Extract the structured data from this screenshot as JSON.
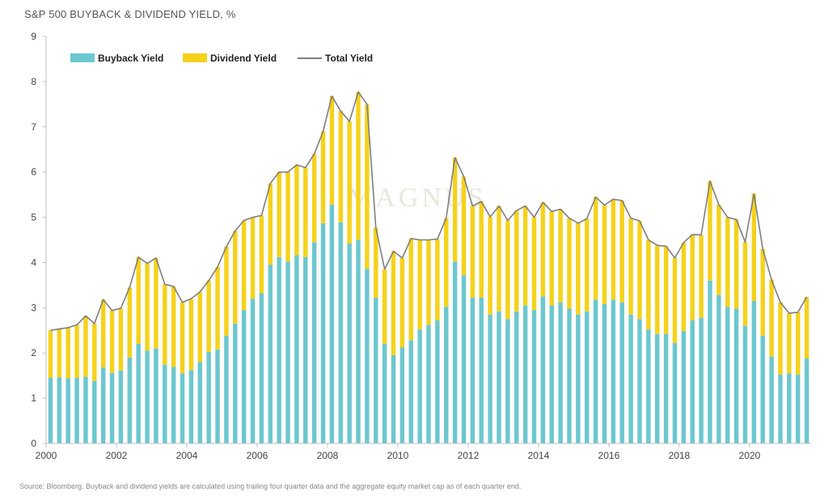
{
  "chart_data": {
    "type": "bar",
    "stacked": true,
    "title": "S&P 500 BUYBACK & DIVIDEND YIELD, %",
    "ylim": [
      0,
      9
    ],
    "yticks": [
      0,
      1,
      2,
      3,
      4,
      5,
      6,
      7,
      8,
      9
    ],
    "xticks": [
      "2000",
      "2002",
      "2004",
      "2006",
      "2008",
      "2010",
      "2012",
      "2014",
      "2016",
      "2018",
      "2020"
    ],
    "x_start": 2000,
    "x_step": 0.25,
    "legend": {
      "placement": "top-left",
      "entries": [
        "Buyback Yield",
        "Dividend Yield",
        "Total Yield"
      ]
    },
    "series": [
      {
        "name": "Buyback Yield",
        "color": "#6cc7cf",
        "values": [
          1.45,
          1.46,
          1.44,
          1.45,
          1.47,
          1.38,
          1.68,
          1.56,
          1.61,
          1.9,
          2.2,
          2.05,
          2.1,
          1.74,
          1.69,
          1.55,
          1.62,
          1.8,
          2.02,
          2.08,
          2.38,
          2.65,
          2.95,
          3.2,
          3.32,
          3.95,
          4.12,
          4.02,
          4.16,
          4.12,
          4.45,
          4.87,
          5.28,
          4.89,
          4.42,
          4.5,
          3.86,
          3.22,
          2.2,
          1.95,
          2.12,
          2.28,
          2.52,
          2.62,
          2.72,
          3.02,
          4.02,
          3.72,
          3.22,
          3.22,
          2.85,
          2.92,
          2.75,
          2.92,
          3.05,
          2.95,
          3.25,
          3.05,
          3.12,
          2.98,
          2.85,
          2.92,
          3.18,
          3.08,
          3.18,
          3.12,
          2.85,
          2.75,
          2.52,
          2.42,
          2.42,
          2.22,
          2.48,
          2.72,
          2.78,
          3.6,
          3.28,
          3.02,
          2.98,
          2.6,
          3.15,
          2.38,
          1.92,
          1.52,
          1.55,
          1.52,
          1.88
        ]
      },
      {
        "name": "Dividend Yield",
        "color": "#f5d21c",
        "values": [
          1.05,
          1.07,
          1.12,
          1.17,
          1.35,
          1.27,
          1.5,
          1.38,
          1.38,
          1.55,
          1.92,
          1.93,
          2.0,
          1.78,
          1.78,
          1.57,
          1.58,
          1.55,
          1.58,
          1.82,
          1.97,
          2.05,
          1.98,
          1.8,
          1.72,
          1.8,
          1.88,
          1.98,
          2.0,
          1.98,
          1.95,
          2.03,
          2.4,
          2.46,
          2.7,
          3.27,
          3.64,
          1.55,
          1.65,
          2.3,
          1.98,
          2.25,
          1.98,
          1.88,
          1.8,
          1.96,
          2.3,
          2.18,
          2.03,
          2.13,
          2.16,
          2.33,
          2.18,
          2.23,
          2.2,
          2.05,
          2.08,
          2.08,
          2.06,
          2.0,
          2.02,
          2.05,
          2.27,
          2.19,
          2.22,
          2.25,
          2.13,
          2.17,
          1.98,
          1.96,
          1.94,
          1.88,
          1.96,
          1.9,
          1.83,
          2.2,
          2.0,
          1.98,
          1.97,
          1.85,
          2.37,
          1.92,
          1.7,
          1.6,
          1.33,
          1.38,
          1.36
        ]
      },
      {
        "name": "Total Yield",
        "type": "line",
        "color": "#7f7f7f",
        "values": [
          2.5,
          2.53,
          2.56,
          2.62,
          2.82,
          2.65,
          3.18,
          2.94,
          2.99,
          3.45,
          4.12,
          3.98,
          4.1,
          3.52,
          3.47,
          3.12,
          3.2,
          3.35,
          3.6,
          3.9,
          4.35,
          4.7,
          4.93,
          5.0,
          5.04,
          5.75,
          6.0,
          6.0,
          6.16,
          6.1,
          6.4,
          6.9,
          7.68,
          7.35,
          7.12,
          7.77,
          7.5,
          4.77,
          3.85,
          4.25,
          4.1,
          4.53,
          4.5,
          4.5,
          4.52,
          4.98,
          6.32,
          5.9,
          5.25,
          5.35,
          5.01,
          5.25,
          4.93,
          5.15,
          5.25,
          5.0,
          5.33,
          5.13,
          5.18,
          4.98,
          4.87,
          4.97,
          5.45,
          5.27,
          5.4,
          5.37,
          4.98,
          4.92,
          4.5,
          4.38,
          4.36,
          4.1,
          4.44,
          4.62,
          4.61,
          5.8,
          5.28,
          5.0,
          4.95,
          4.45,
          5.52,
          4.3,
          3.62,
          3.12,
          2.88,
          2.9,
          3.24
        ]
      }
    ]
  },
  "watermark": "MAGNUS",
  "source": "Source: Bloomberg. Buyback and dividend yields are calculated using trailing four quarter data and the aggregate equity market cap as of each quarter end."
}
